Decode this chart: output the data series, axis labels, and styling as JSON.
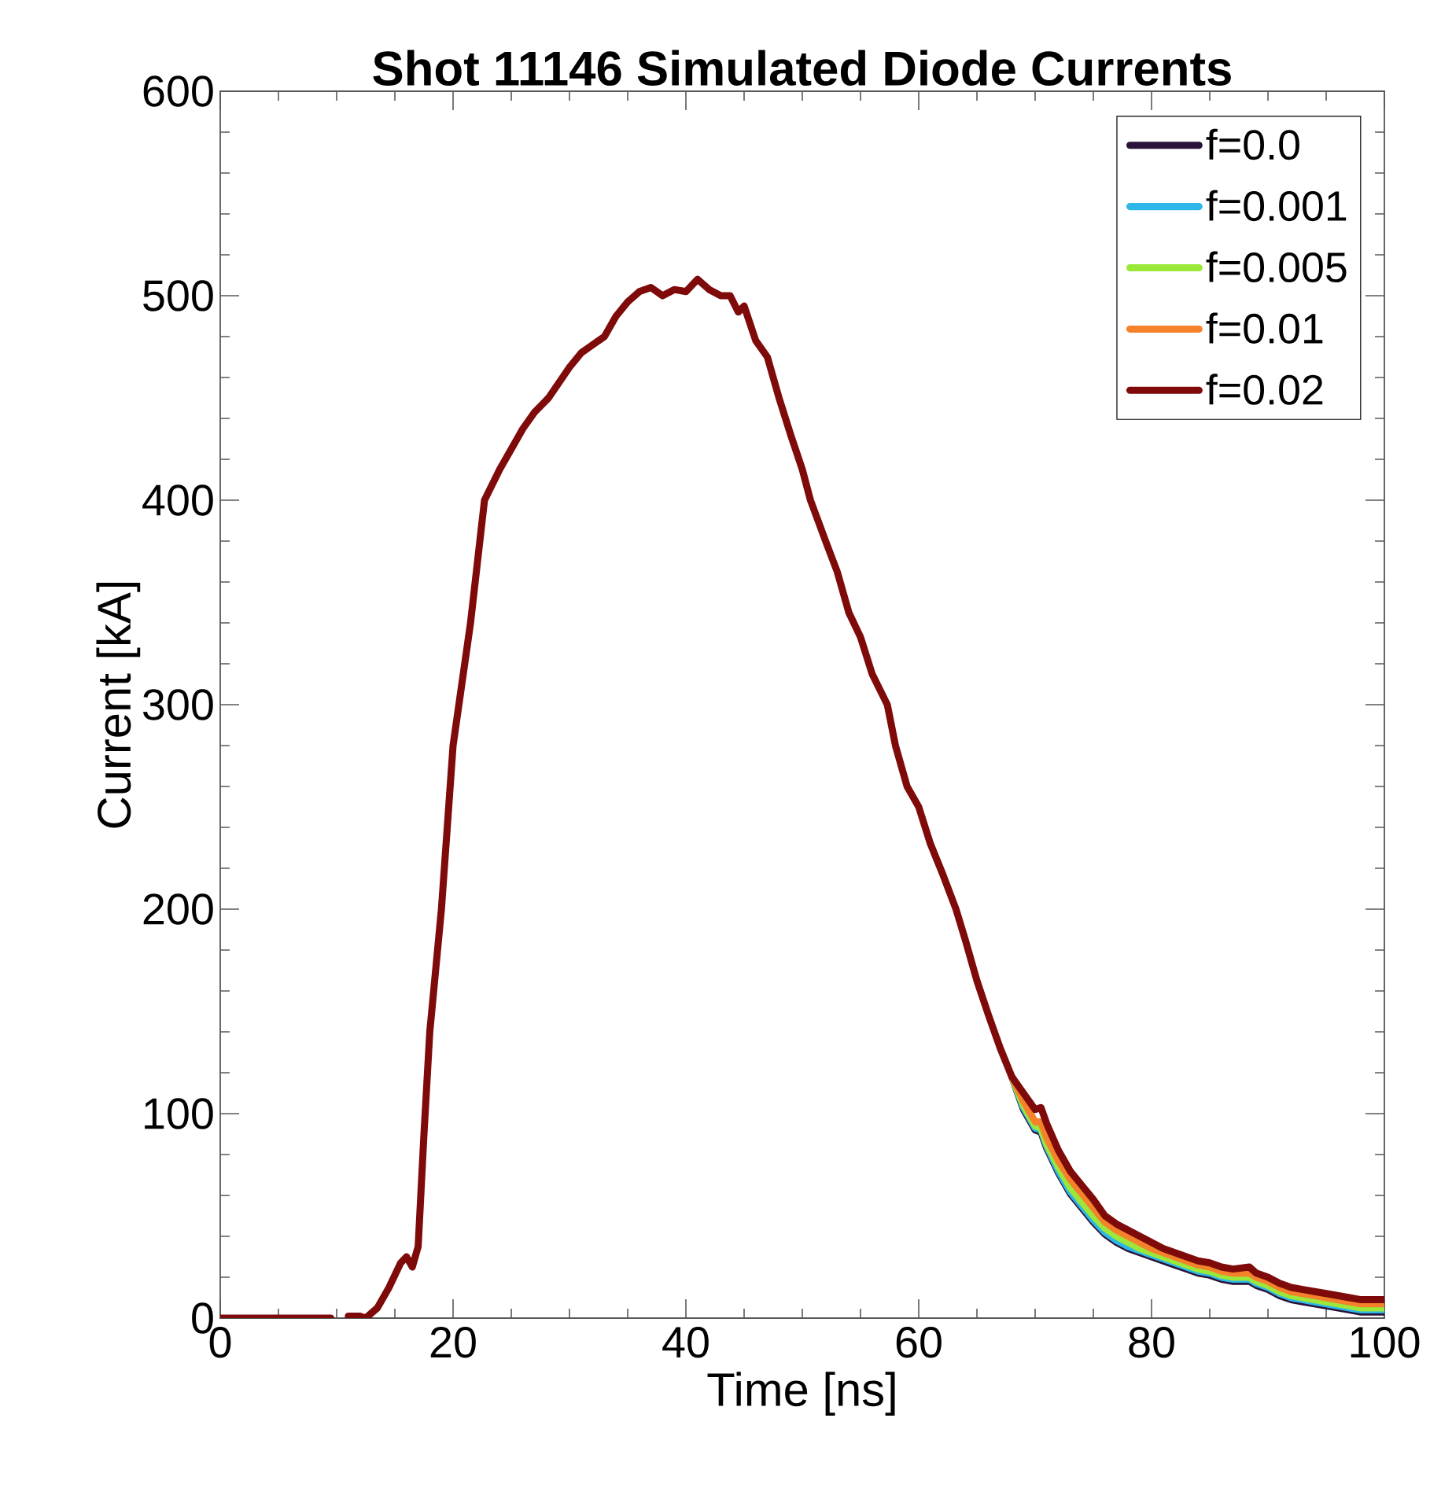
{
  "chart_data": {
    "type": "line",
    "title": "Shot 11146 Simulated Diode Currents",
    "xlabel": "Time [ns]",
    "ylabel": "Current [kA]",
    "x": [
      0,
      9.5,
      10.3,
      11,
      12,
      12.5,
      13.5,
      14.5,
      15.5,
      16,
      16.5,
      17,
      17.5,
      18,
      19,
      20,
      20.5,
      21.5,
      22.7,
      24,
      25,
      26,
      27,
      28.2,
      30,
      31,
      33,
      34,
      35,
      36,
      37,
      38,
      39,
      40,
      41,
      42,
      43,
      43.8,
      44.5,
      45,
      46,
      47,
      48,
      49,
      50,
      50.7,
      52,
      53,
      54,
      55,
      56,
      57.3,
      58,
      59,
      60,
      61,
      62,
      63.2,
      64,
      65,
      66,
      67,
      68,
      69,
      70,
      70.5,
      71,
      72,
      73,
      74,
      75,
      76,
      77,
      78,
      79,
      80,
      81,
      82,
      83,
      84,
      85,
      86,
      87,
      88.4,
      89,
      90,
      91,
      92,
      93,
      94,
      95,
      96,
      97,
      98,
      99,
      100
    ],
    "series": [
      {
        "name": "f=0.0",
        "color": "#2a1238",
        "values": [
          null,
          null,
          null,
          null,
          null,
          null,
          null,
          null,
          null,
          null,
          null,
          null,
          null,
          null,
          null,
          null,
          null,
          null,
          null,
          null,
          null,
          null,
          null,
          null,
          null,
          null,
          null,
          null,
          null,
          null,
          null,
          null,
          null,
          null,
          null,
          null,
          null,
          null,
          null,
          null,
          null,
          null,
          null,
          null,
          null,
          null,
          null,
          null,
          null,
          null,
          null,
          null,
          null,
          null,
          null,
          null,
          null,
          null,
          null,
          null,
          null,
          null,
          118,
          102,
          92,
          91,
          83,
          71,
          61,
          54,
          47,
          41,
          37,
          34,
          32,
          30,
          28,
          26,
          24,
          22,
          21,
          19,
          18,
          18,
          16,
          14,
          11,
          9,
          8,
          7,
          6,
          5,
          4,
          3,
          3,
          3
        ]
      },
      {
        "name": "f=0.001",
        "color": "#2cb7e8",
        "values": [
          null,
          null,
          null,
          null,
          null,
          null,
          null,
          null,
          null,
          null,
          null,
          null,
          null,
          null,
          null,
          null,
          null,
          null,
          null,
          null,
          null,
          null,
          null,
          null,
          null,
          null,
          null,
          null,
          null,
          null,
          null,
          null,
          null,
          null,
          null,
          null,
          null,
          null,
          null,
          null,
          null,
          null,
          null,
          null,
          null,
          null,
          null,
          null,
          null,
          null,
          null,
          null,
          null,
          null,
          null,
          null,
          null,
          null,
          null,
          null,
          null,
          null,
          118,
          103,
          93,
          92,
          84,
          72,
          62,
          55,
          48,
          42,
          38,
          35,
          33,
          31,
          29,
          27,
          25,
          23,
          22,
          20,
          19,
          19,
          17,
          15,
          12,
          10,
          9,
          8,
          7,
          6,
          5,
          4,
          4,
          4
        ]
      },
      {
        "name": "f=0.005",
        "color": "#9be83a",
        "values": [
          null,
          null,
          null,
          null,
          null,
          null,
          null,
          null,
          null,
          null,
          null,
          null,
          null,
          null,
          null,
          null,
          null,
          null,
          null,
          null,
          null,
          null,
          null,
          null,
          null,
          null,
          null,
          null,
          null,
          null,
          null,
          null,
          null,
          null,
          null,
          null,
          null,
          null,
          null,
          null,
          null,
          null,
          null,
          null,
          null,
          null,
          null,
          null,
          null,
          null,
          null,
          null,
          null,
          null,
          null,
          null,
          null,
          null,
          null,
          null,
          null,
          null,
          118,
          104,
          94,
          93,
          85,
          74,
          64,
          57,
          50,
          44,
          40,
          37,
          34,
          32,
          30,
          28,
          26,
          24,
          23,
          21,
          20,
          20,
          18,
          16,
          13,
          11,
          10,
          9,
          8,
          7,
          6,
          5,
          5,
          5
        ]
      },
      {
        "name": "f=0.01",
        "color": "#f5822a",
        "values": [
          null,
          null,
          null,
          null,
          null,
          null,
          null,
          null,
          null,
          null,
          null,
          null,
          null,
          null,
          null,
          null,
          null,
          null,
          null,
          null,
          null,
          null,
          null,
          null,
          null,
          null,
          null,
          null,
          null,
          null,
          null,
          null,
          null,
          null,
          null,
          null,
          null,
          null,
          null,
          null,
          null,
          null,
          null,
          null,
          null,
          null,
          null,
          null,
          null,
          null,
          null,
          null,
          null,
          null,
          null,
          null,
          null,
          null,
          null,
          null,
          null,
          null,
          118,
          106,
          96,
          96,
          88,
          77,
          68,
          61,
          54,
          47,
          43,
          40,
          37,
          34,
          32,
          30,
          28,
          26,
          25,
          23,
          22,
          22,
          20,
          18,
          15,
          13,
          12,
          11,
          10,
          9,
          8,
          7,
          7,
          7
        ]
      },
      {
        "name": "f=0.02",
        "color": "#7f0a0a",
        "values": [
          0,
          0,
          null,
          1,
          1,
          0,
          5,
          15,
          27,
          30,
          25,
          35,
          90,
          140,
          200,
          280,
          300,
          340,
          400,
          415,
          425,
          435,
          443,
          450,
          465,
          472,
          480,
          490,
          497,
          502,
          504,
          500,
          503,
          502,
          508,
          503,
          500,
          500,
          492,
          495,
          478,
          470,
          450,
          432,
          415,
          400,
          380,
          365,
          345,
          333,
          315,
          300,
          280,
          260,
          250,
          232,
          218,
          200,
          185,
          165,
          148,
          132,
          118,
          110,
          102,
          103,
          95,
          82,
          72,
          65,
          58,
          50,
          46,
          43,
          40,
          37,
          34,
          32,
          30,
          28,
          27,
          25,
          24,
          25,
          22,
          20,
          17,
          15,
          14,
          13,
          12,
          11,
          10,
          9,
          9,
          9
        ]
      }
    ],
    "xlim": [
      0,
      100
    ],
    "ylim": [
      0,
      600
    ],
    "xticks": [
      0,
      20,
      40,
      60,
      80,
      100
    ],
    "yticks": [
      0,
      100,
      200,
      300,
      400,
      500,
      600
    ],
    "legend": "top right"
  }
}
